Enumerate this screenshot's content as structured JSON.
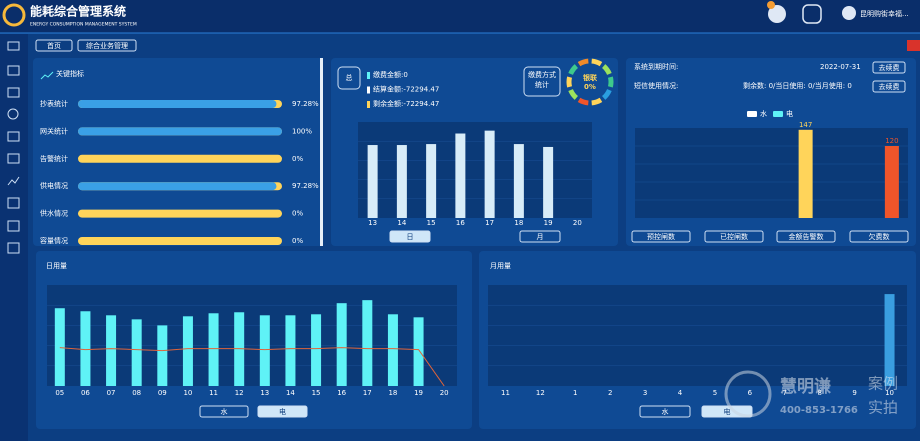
{
  "header": {
    "title": "能耗综合管理系统",
    "subtitle": "ENERGY CONSUMPTION MANAGEMENT SYSTEM",
    "user": "昆明购街幸福..."
  },
  "tabs": [
    "首页",
    "综合业务管理"
  ],
  "indicators": {
    "title": "关键指标",
    "xlim": [
      0,
      100
    ],
    "color": "#3aa0e6",
    "rest_color": "#ffd45a",
    "rows": [
      {
        "label": "抄表统计",
        "value": 97.28,
        "value_label": "97.28%"
      },
      {
        "label": "网关统计",
        "value": 100,
        "value_label": "100%"
      },
      {
        "label": "告警统计",
        "value": 0,
        "value_label": "0%"
      },
      {
        "label": "供电情况",
        "value": 97.28,
        "value_label": "97.28%"
      },
      {
        "label": "供水情况",
        "value": 0,
        "value_label": "0%"
      },
      {
        "label": "容量情况",
        "value": 0,
        "value_label": "0%"
      }
    ]
  },
  "fee": {
    "total": "总",
    "items": [
      "缴费金额:0",
      "结算金额:-72294.47",
      "剩余金额:-72294.47"
    ],
    "item_colors": [
      "#5ff2f6",
      "#ffffff",
      "#ffd45a"
    ],
    "method_title": "缴费方式统计",
    "donut_label": "银联",
    "donut_value": 0,
    "donut_value_label": "0%",
    "chart": {
      "type": "bar",
      "categories": [
        "13",
        "14",
        "15",
        "16",
        "17",
        "18",
        "19",
        "20"
      ],
      "values": [
        76,
        76,
        77,
        88,
        91,
        77,
        74,
        0
      ],
      "ylim": [
        0,
        100
      ],
      "color": "#d8ecf8"
    },
    "buttons": [
      "日",
      "月"
    ]
  },
  "sms": {
    "expiry_label": "系统到期时间:",
    "expiry_date": "2022-07-31",
    "renew": "去续费",
    "sms_label": "短信使用情况:",
    "sms_text": "剩余数: 0/当日使用: 0/当月使用: 0",
    "chart": {
      "type": "bar",
      "categories": [
        "预控闸数",
        "已控闸数",
        "金额告警数",
        "欠费数"
      ],
      "ylim": [
        0,
        150
      ],
      "series": [
        {
          "name": "水",
          "color": "#ffd45a",
          "values": [
            null,
            null,
            147,
            null
          ]
        },
        {
          "name": "电",
          "color": "#f0552a",
          "values": [
            null,
            null,
            null,
            120
          ]
        }
      ]
    }
  },
  "daily": {
    "title": "日用量",
    "buttons": [
      "水",
      "电"
    ],
    "chart": {
      "type": "bar",
      "categories": [
        "05",
        "06",
        "07",
        "08",
        "09",
        "10",
        "11",
        "12",
        "13",
        "14",
        "15",
        "16",
        "17",
        "18",
        "19",
        "20"
      ],
      "bar_values": [
        77,
        74,
        70,
        66,
        60,
        69,
        72,
        73,
        70,
        70,
        71,
        82,
        85,
        71,
        68,
        0
      ],
      "bar_color": "#5ff2f6",
      "line_values": [
        38,
        36,
        37,
        36,
        35,
        37,
        37,
        37,
        36,
        37,
        37,
        38,
        37,
        37,
        36,
        0
      ],
      "line_color": "#e0643a",
      "ylim": [
        0,
        100
      ]
    }
  },
  "monthly": {
    "title": "月用量",
    "buttons": [
      "水",
      "电"
    ],
    "chart": {
      "type": "bar",
      "categories": [
        "11",
        "12",
        "1",
        "2",
        "3",
        "4",
        "5",
        "6",
        "7",
        "8",
        "9",
        "10"
      ],
      "values": [
        0,
        0,
        0,
        0,
        0,
        0,
        0,
        0,
        0,
        0,
        0,
        91
      ],
      "color": "#3a9ee0",
      "ylim": [
        0,
        100
      ]
    }
  },
  "watermark": {
    "brand": "慧明谦",
    "phone": "400-853-1766",
    "tag1": "案例",
    "tag2": "实拍"
  }
}
